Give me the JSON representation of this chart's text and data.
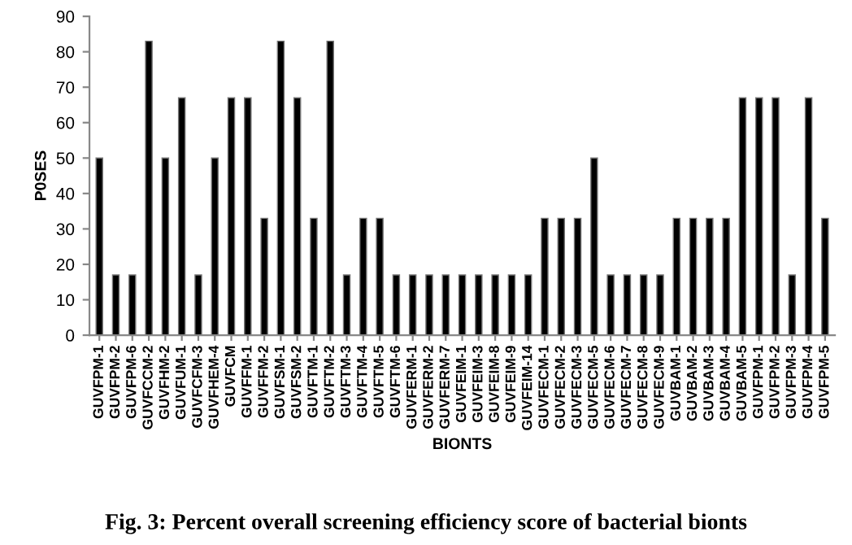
{
  "chart_data": {
    "type": "bar",
    "xlabel": "BIONTS",
    "ylabel": "P0SES",
    "categories": [
      "GUVFPM-1",
      "GUVFPM-2",
      "GUVFPM-6",
      "GUVFCCM-2",
      "GUVFHM-2",
      "GUVFUM-1",
      "GUVFCFM-3",
      "GUVFHEM-4",
      "GUVFCM",
      "GUVFFM-1",
      "GUVFFM-2",
      "GUVFSM-1",
      "GUVFSM-2",
      "GUVFTM-1",
      "GUVFTM-2",
      "GUVFTM-3",
      "GUVFTM-4",
      "GUVFTM-5",
      "GUVFTM-6",
      "GUVFERM-1",
      "GUVFERM-2",
      "GUVFERM-7",
      "GUVFEIM-1",
      "GUVFEIM-3",
      "GUVFEIM-8",
      "GUVFEIM-9",
      "GUVFEIM-14",
      "GUVFECM-1",
      "GUVFECM-2",
      "GUVFECM-3",
      "GUVFECM-5",
      "GUVFECM-6",
      "GUVFECM-7",
      "GUVFECM-8",
      "GUVFECM-9",
      "GUVBAM-1",
      "GUVBAM-2",
      "GUVBAM-3",
      "GUVBAM-4",
      "GUVBAM-5",
      "GUVFPM-1",
      "GUVFPM-2",
      "GUVFPM-3",
      "GUVFPM-4",
      "GUVFPM-5"
    ],
    "values": [
      50,
      17,
      17,
      83,
      50,
      67,
      17,
      50,
      67,
      67,
      33,
      83,
      67,
      33,
      83,
      17,
      33,
      33,
      17,
      17,
      17,
      17,
      17,
      17,
      17,
      17,
      17,
      33,
      33,
      33,
      50,
      17,
      17,
      17,
      17,
      33,
      33,
      33,
      33,
      67,
      67,
      67,
      17,
      67,
      33
    ],
    "color": "#000000",
    "ylim": [
      0,
      90
    ],
    "yticks": [
      0,
      10,
      20,
      30,
      40,
      50,
      60,
      70,
      80,
      90
    ],
    "grid": false,
    "legend": false,
    "annotations": [
      "Fig. 3: Percent overall screening efficiency score of bacterial bionts"
    ]
  }
}
